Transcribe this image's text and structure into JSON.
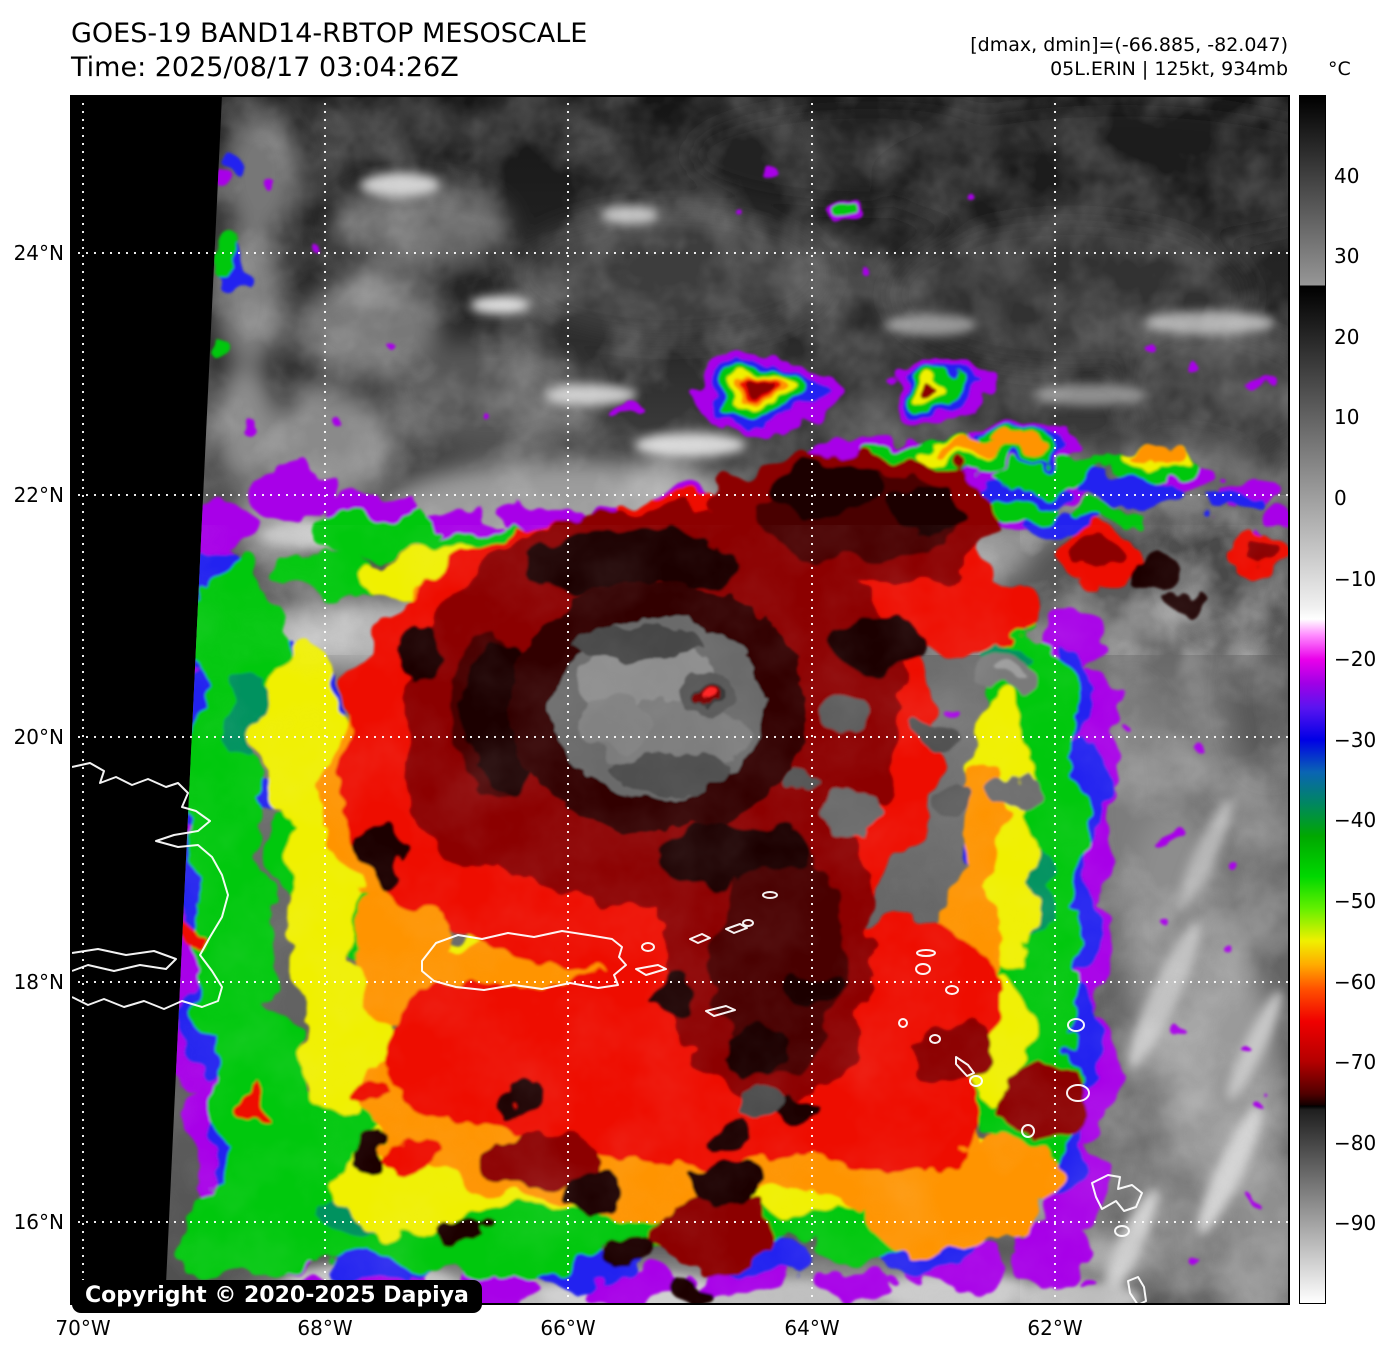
{
  "header": {
    "title": "GOES-19 BAND14-RBTOP MESOSCALE",
    "time": "Time: 2025/08/17 03:04:26Z",
    "range_label": "[dmax, dmin]=(-66.885, -82.047)",
    "storm_label": "05L.ERIN | 125kt, 934mb"
  },
  "map": {
    "copyright": "Copyright © 2020-2025 Dapiya",
    "lat_ticks": [
      "24°N",
      "22°N",
      "20°N",
      "18°N",
      "16°N"
    ],
    "lon_ticks": [
      "70°W",
      "68°W",
      "66°W",
      "64°W",
      "62°W"
    ],
    "grid_color": "#ffffff",
    "coastline_color": "#ffffff",
    "nodata_color": "#000000"
  },
  "colorbar": {
    "unit": "°C",
    "top_value": 50,
    "bottom_value": -100,
    "ticks": [
      {
        "value": 40,
        "label": "40"
      },
      {
        "value": 30,
        "label": "30"
      },
      {
        "value": 20,
        "label": "20"
      },
      {
        "value": 10,
        "label": "10"
      },
      {
        "value": 0,
        "label": "0"
      },
      {
        "value": -10,
        "label": "−10"
      },
      {
        "value": -20,
        "label": "−20"
      },
      {
        "value": -30,
        "label": "−30"
      },
      {
        "value": -40,
        "label": "−40"
      },
      {
        "value": -50,
        "label": "−50"
      },
      {
        "value": -60,
        "label": "−60"
      },
      {
        "value": -70,
        "label": "−70"
      },
      {
        "value": -80,
        "label": "−80"
      },
      {
        "value": -90,
        "label": "−90"
      }
    ],
    "stops": [
      {
        "t": 50,
        "c": "#000000"
      },
      {
        "t": 26.5,
        "c": "#969696"
      },
      {
        "t": 26.4,
        "c": "#000000"
      },
      {
        "t": -13.5,
        "c": "#f0f0f0"
      },
      {
        "t": -15,
        "c": "#ffffff"
      },
      {
        "t": -17,
        "c": "#ff8cff"
      },
      {
        "t": -20,
        "c": "#ea00ea"
      },
      {
        "t": -23,
        "c": "#a000e6"
      },
      {
        "t": -26,
        "c": "#5a14f0"
      },
      {
        "t": -30,
        "c": "#0000e6"
      },
      {
        "t": -34,
        "c": "#0a64b4"
      },
      {
        "t": -38,
        "c": "#00875f"
      },
      {
        "t": -42,
        "c": "#00a800"
      },
      {
        "t": -47,
        "c": "#00d800"
      },
      {
        "t": -51,
        "c": "#64f000"
      },
      {
        "t": -55,
        "c": "#f0f000"
      },
      {
        "t": -58,
        "c": "#ffaa00"
      },
      {
        "t": -61,
        "c": "#ff5000"
      },
      {
        "t": -65,
        "c": "#f00000"
      },
      {
        "t": -70,
        "c": "#b40000"
      },
      {
        "t": -74,
        "c": "#500000"
      },
      {
        "t": -75.4,
        "c": "#140000"
      },
      {
        "t": -75.5,
        "c": "#000000"
      },
      {
        "t": -76,
        "c": "#1f1f1f"
      },
      {
        "t": -100,
        "c": "#ffffff"
      }
    ]
  }
}
